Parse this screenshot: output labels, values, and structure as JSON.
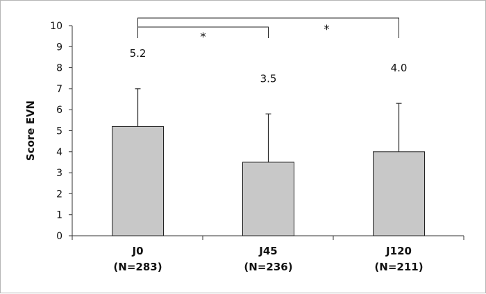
{
  "chart_data": {
    "type": "bar",
    "categories": [
      "J0",
      "J45",
      "J120"
    ],
    "category_sublabels": [
      "(N=283)",
      "(N=236)",
      "(N=211)"
    ],
    "values": [
      5.2,
      3.5,
      4.0
    ],
    "error_upper": [
      7.0,
      5.8,
      6.3
    ],
    "data_labels": [
      "5.2",
      "3.5",
      "4.0"
    ],
    "ylabel": "Score EVN",
    "ylim": [
      0,
      10
    ],
    "yticks": [
      0,
      1,
      2,
      3,
      4,
      5,
      6,
      7,
      8,
      9,
      10
    ],
    "grid": false,
    "bar_color": "#c8c8c8",
    "significance": [
      {
        "from": 0,
        "to": 1,
        "label": "*"
      },
      {
        "from": 0,
        "to": 2,
        "label": "*"
      }
    ]
  }
}
